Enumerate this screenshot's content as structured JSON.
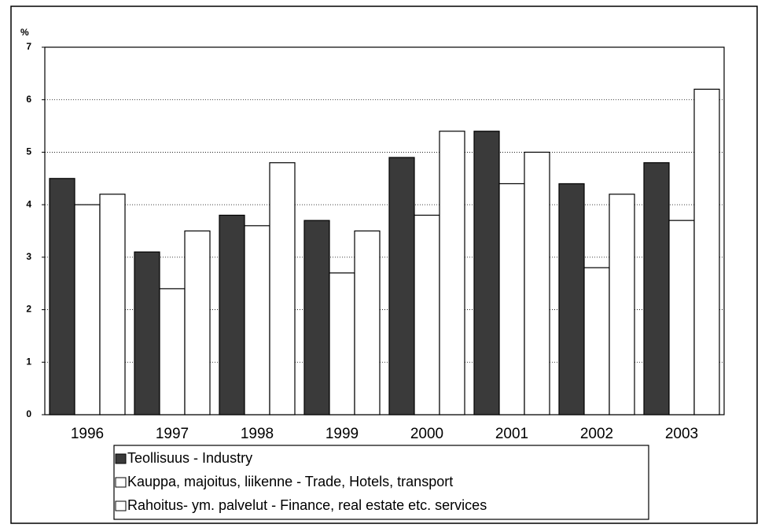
{
  "chart_data": {
    "type": "bar",
    "y_label": "%",
    "categories": [
      "1996",
      "1997",
      "1998",
      "1999",
      "2000",
      "2001",
      "2002",
      "2003"
    ],
    "series": [
      {
        "name": "Teollisuus - Industry",
        "color": "#3a3a3a",
        "values": [
          4.5,
          3.1,
          3.8,
          3.7,
          4.9,
          5.4,
          4.4,
          4.8
        ]
      },
      {
        "name": "Kauppa, majoitus, liikenne - Trade, Hotels, transport",
        "color": "#ffffff",
        "values": [
          4.0,
          2.4,
          3.6,
          2.7,
          3.8,
          4.4,
          2.8,
          3.7
        ]
      },
      {
        "name": "Rahoitus- ym. palvelut - Finance, real estate etc. services",
        "color": "#ffffff",
        "values": [
          4.2,
          3.5,
          4.8,
          3.5,
          5.4,
          5.0,
          4.2,
          6.2
        ]
      }
    ],
    "ylim": [
      0,
      7
    ],
    "yticks": [
      0,
      1,
      2,
      3,
      4,
      5,
      6,
      7
    ],
    "grid": true,
    "legend": "bottom"
  }
}
